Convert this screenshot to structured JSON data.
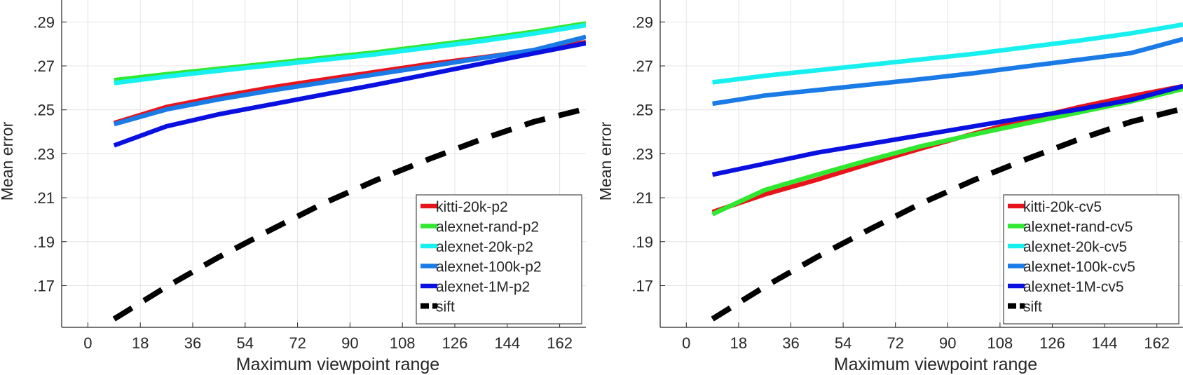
{
  "chart_data": [
    {
      "type": "line",
      "title": "",
      "xlabel": "Maximum viewpoint range",
      "ylabel": "Mean error",
      "xlim": [
        -9,
        171
      ],
      "ylim": [
        0.151,
        0.3
      ],
      "xticks": [
        0,
        18,
        36,
        54,
        72,
        90,
        108,
        126,
        144,
        162
      ],
      "yticks": [
        0.17,
        0.19,
        0.21,
        0.23,
        0.25,
        0.27,
        0.29
      ],
      "grid": true,
      "legend_position": "bottom-right",
      "x": [
        9,
        27,
        45,
        63,
        81,
        99,
        117,
        135,
        153,
        171
      ],
      "series": [
        {
          "name": "kitti-20k-p2",
          "color": "#e8141c",
          "dashed": false,
          "values": [
            0.244,
            0.2513,
            0.256,
            0.2602,
            0.2638,
            0.2673,
            0.2708,
            0.2738,
            0.277,
            0.2808
          ]
        },
        {
          "name": "alexnet-rand-p2",
          "color": "#2fe82f",
          "dashed": false,
          "values": [
            0.2635,
            0.2662,
            0.2687,
            0.2712,
            0.2737,
            0.2762,
            0.2792,
            0.2822,
            0.2855,
            0.2893
          ]
        },
        {
          "name": "alexnet-20k-p2",
          "color": "#18f0f0",
          "dashed": false,
          "values": [
            0.2622,
            0.2652,
            0.2678,
            0.2703,
            0.2728,
            0.2753,
            0.2783,
            0.2813,
            0.2847,
            0.2885
          ]
        },
        {
          "name": "alexnet-100k-p2",
          "color": "#1a7ae6",
          "dashed": false,
          "values": [
            0.2435,
            0.2502,
            0.2548,
            0.2588,
            0.2625,
            0.2662,
            0.2698,
            0.2735,
            0.2772,
            0.2832
          ]
        },
        {
          "name": "alexnet-1M-p2",
          "color": "#0a10e0",
          "dashed": false,
          "values": [
            0.2338,
            0.2425,
            0.248,
            0.2525,
            0.257,
            0.2615,
            0.2662,
            0.271,
            0.2757,
            0.2803
          ]
        },
        {
          "name": "sift",
          "color": "#000000",
          "dashed": true,
          "values": [
            0.1548,
            0.1695,
            0.183,
            0.1955,
            0.2075,
            0.218,
            0.2275,
            0.2365,
            0.2445,
            0.2505
          ]
        }
      ]
    },
    {
      "type": "line",
      "title": "",
      "xlabel": "Maximum viewpoint range",
      "ylabel": "Mean error",
      "xlim": [
        -9,
        171
      ],
      "ylim": [
        0.151,
        0.3
      ],
      "xticks": [
        0,
        18,
        36,
        54,
        72,
        90,
        108,
        126,
        144,
        162
      ],
      "yticks": [
        0.17,
        0.19,
        0.21,
        0.23,
        0.25,
        0.27,
        0.29
      ],
      "grid": true,
      "legend_position": "bottom-right",
      "x": [
        9,
        27,
        45,
        63,
        81,
        99,
        117,
        135,
        153,
        171
      ],
      "series": [
        {
          "name": "kitti-20k-cv5",
          "color": "#e8141c",
          "dashed": false,
          "values": [
            0.2035,
            0.2115,
            0.2182,
            0.2255,
            0.2325,
            0.2392,
            0.2455,
            0.2512,
            0.2562,
            0.2608
          ]
        },
        {
          "name": "alexnet-rand-cv5",
          "color": "#2fe82f",
          "dashed": false,
          "values": [
            0.2025,
            0.2135,
            0.2205,
            0.2272,
            0.2335,
            0.2388,
            0.2438,
            0.2488,
            0.2538,
            0.2595
          ]
        },
        {
          "name": "alexnet-20k-cv5",
          "color": "#18f0f0",
          "dashed": false,
          "values": [
            0.2625,
            0.2655,
            0.268,
            0.2705,
            0.273,
            0.2755,
            0.2785,
            0.2815,
            0.2848,
            0.2888
          ]
        },
        {
          "name": "alexnet-100k-cv5",
          "color": "#1a7ae6",
          "dashed": false,
          "values": [
            0.2528,
            0.2565,
            0.259,
            0.2615,
            0.264,
            0.2667,
            0.2698,
            0.2728,
            0.2758,
            0.2822
          ]
        },
        {
          "name": "alexnet-1M-cv5",
          "color": "#0a10e0",
          "dashed": false,
          "values": [
            0.2205,
            0.2255,
            0.2305,
            0.2345,
            0.2385,
            0.2425,
            0.2465,
            0.2502,
            0.2545,
            0.2608
          ]
        },
        {
          "name": "sift",
          "color": "#000000",
          "dashed": true,
          "values": [
            0.1548,
            0.1695,
            0.183,
            0.1955,
            0.2075,
            0.218,
            0.2275,
            0.2365,
            0.2445,
            0.2505
          ]
        }
      ]
    }
  ]
}
